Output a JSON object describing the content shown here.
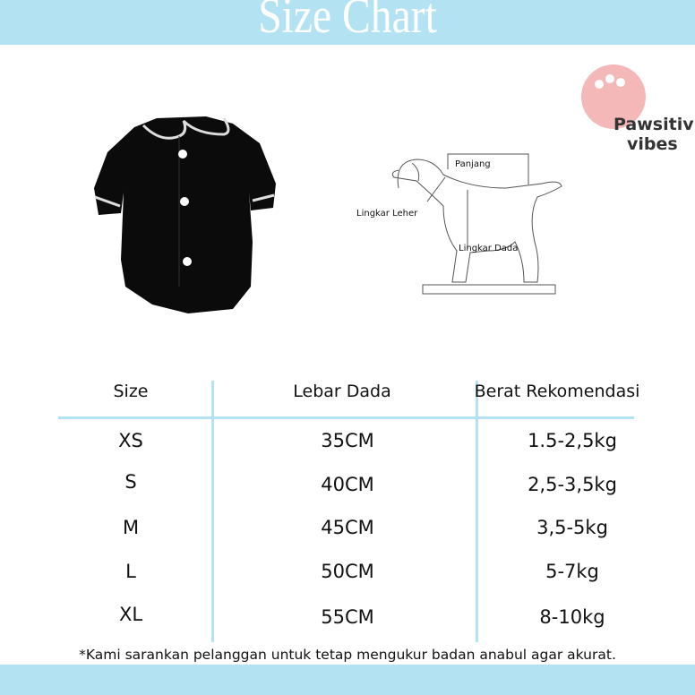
{
  "header": {
    "title": "Size Chart"
  },
  "logo": {
    "text_line1": "Pawsitive",
    "text_line2": "vibes",
    "color": "#f4b8b8"
  },
  "diagram": {
    "labels": {
      "length": "Panjang",
      "neck": "Lingkar Leher",
      "chest": "Lingkar Dada"
    }
  },
  "table": {
    "columns": [
      "Size",
      "Lebar Dada",
      "Berat Rekomendasi"
    ],
    "rows": [
      [
        "XS",
        "35CM",
        "1.5-2,5kg"
      ],
      [
        "S",
        "40CM",
        "2,5-3,5kg"
      ],
      [
        "M",
        "45CM",
        "3,5-5kg"
      ],
      [
        "L",
        "50CM",
        "5-7kg"
      ],
      [
        "XL",
        "55CM",
        "8-10kg"
      ]
    ]
  },
  "footnote": "*Kami sarankan pelanggan untuk tetap mengukur badan anabul agar akurat.",
  "colors": {
    "accent": "#b3e3f2"
  }
}
